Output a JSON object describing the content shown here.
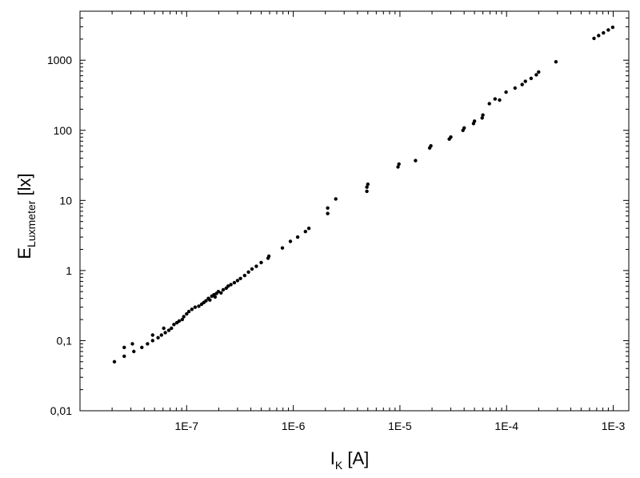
{
  "chart_data": {
    "type": "scatter",
    "xscale": "log",
    "yscale": "log",
    "xlim": [
      1e-08,
      0.0014
    ],
    "ylim": [
      0.01,
      5000
    ],
    "grid": false,
    "legend": "none",
    "marker_color": "#000000",
    "xlabel": {
      "main": "I",
      "sub": "K",
      "unit": " [A]"
    },
    "ylabel": {
      "main": "E",
      "sub": "Luxmeter",
      "unit": " [lx]"
    },
    "xticks": [
      {
        "value": 1e-07,
        "label": "1E-7"
      },
      {
        "value": 1e-06,
        "label": "1E-6"
      },
      {
        "value": 1e-05,
        "label": "1E-5"
      },
      {
        "value": 0.0001,
        "label": "1E-4"
      },
      {
        "value": 0.001,
        "label": "1E-3"
      }
    ],
    "yticks": [
      {
        "value": 0.01,
        "label": "0,01"
      },
      {
        "value": 0.1,
        "label": "0,1"
      },
      {
        "value": 1,
        "label": "1"
      },
      {
        "value": 10,
        "label": "10"
      },
      {
        "value": 100,
        "label": "100"
      },
      {
        "value": 1000,
        "label": "1000"
      }
    ],
    "points": [
      [
        2.1e-08,
        0.05
      ],
      [
        2.6e-08,
        0.06
      ],
      [
        2.6e-08,
        0.08
      ],
      [
        3.1e-08,
        0.09
      ],
      [
        3.2e-08,
        0.07
      ],
      [
        3.8e-08,
        0.08
      ],
      [
        4.3e-08,
        0.09
      ],
      [
        4.8e-08,
        0.12
      ],
      [
        4.8e-08,
        0.1
      ],
      [
        5.4e-08,
        0.11
      ],
      [
        5.8e-08,
        0.12
      ],
      [
        6.1e-08,
        0.15
      ],
      [
        6.3e-08,
        0.13
      ],
      [
        6.8e-08,
        0.14
      ],
      [
        7.2e-08,
        0.15
      ],
      [
        7.6e-08,
        0.17
      ],
      [
        8.1e-08,
        0.18
      ],
      [
        8.5e-08,
        0.19
      ],
      [
        9.1e-08,
        0.2
      ],
      [
        9.4e-08,
        0.22
      ],
      [
        1e-07,
        0.24
      ],
      [
        1.05e-07,
        0.26
      ],
      [
        1.12e-07,
        0.28
      ],
      [
        1.2e-07,
        0.3
      ],
      [
        1.3e-07,
        0.31
      ],
      [
        1.38e-07,
        0.33
      ],
      [
        1.45e-07,
        0.35
      ],
      [
        1.52e-07,
        0.37
      ],
      [
        1.6e-07,
        0.4
      ],
      [
        1.65e-07,
        0.38
      ],
      [
        1.72e-07,
        0.43
      ],
      [
        1.8e-07,
        0.45
      ],
      [
        1.85e-07,
        0.42
      ],
      [
        1.9e-07,
        0.47
      ],
      [
        1.98e-07,
        0.5
      ],
      [
        2.1e-07,
        0.48
      ],
      [
        2.2e-07,
        0.53
      ],
      [
        2.35e-07,
        0.56
      ],
      [
        2.45e-07,
        0.6
      ],
      [
        2.6e-07,
        0.63
      ],
      [
        2.8e-07,
        0.67
      ],
      [
        3e-07,
        0.72
      ],
      [
        3.2e-07,
        0.77
      ],
      [
        3.5e-07,
        0.85
      ],
      [
        3.8e-07,
        0.95
      ],
      [
        4.1e-07,
        1.05
      ],
      [
        4.5e-07,
        1.15
      ],
      [
        5e-07,
        1.3
      ],
      [
        5.8e-07,
        1.5
      ],
      [
        5.9e-07,
        1.6
      ],
      [
        7.9e-07,
        2.1
      ],
      [
        9.4e-07,
        2.6
      ],
      [
        1.1e-06,
        3.0
      ],
      [
        1.3e-06,
        3.6
      ],
      [
        1.4e-06,
        4.0
      ],
      [
        2.1e-06,
        6.5
      ],
      [
        2.1e-06,
        7.8
      ],
      [
        2.5e-06,
        10.5
      ],
      [
        4.9e-06,
        13.5
      ],
      [
        4.9e-06,
        15.5
      ],
      [
        5e-06,
        17
      ],
      [
        9.6e-06,
        30
      ],
      [
        9.8e-06,
        33
      ],
      [
        1.4e-05,
        37
      ],
      [
        1.9e-05,
        56
      ],
      [
        1.95e-05,
        60
      ],
      [
        2.9e-05,
        75
      ],
      [
        3e-05,
        80
      ],
      [
        3.9e-05,
        100
      ],
      [
        4e-05,
        108
      ],
      [
        4.9e-05,
        125
      ],
      [
        5e-05,
        135
      ],
      [
        5.9e-05,
        150
      ],
      [
        6e-05,
        165
      ],
      [
        6.9e-05,
        240
      ],
      [
        7.8e-05,
        280
      ],
      [
        8.6e-05,
        270
      ],
      [
        9.9e-05,
        350
      ],
      [
        0.00012,
        400
      ],
      [
        0.00014,
        450
      ],
      [
        0.00015,
        500
      ],
      [
        0.00017,
        550
      ],
      [
        0.00019,
        620
      ],
      [
        0.0002,
        680
      ],
      [
        0.00029,
        950
      ],
      [
        0.00066,
        2050
      ],
      [
        0.00073,
        2250
      ],
      [
        0.00081,
        2450
      ],
      [
        0.0009,
        2700
      ],
      [
        0.00099,
        2950
      ]
    ]
  }
}
